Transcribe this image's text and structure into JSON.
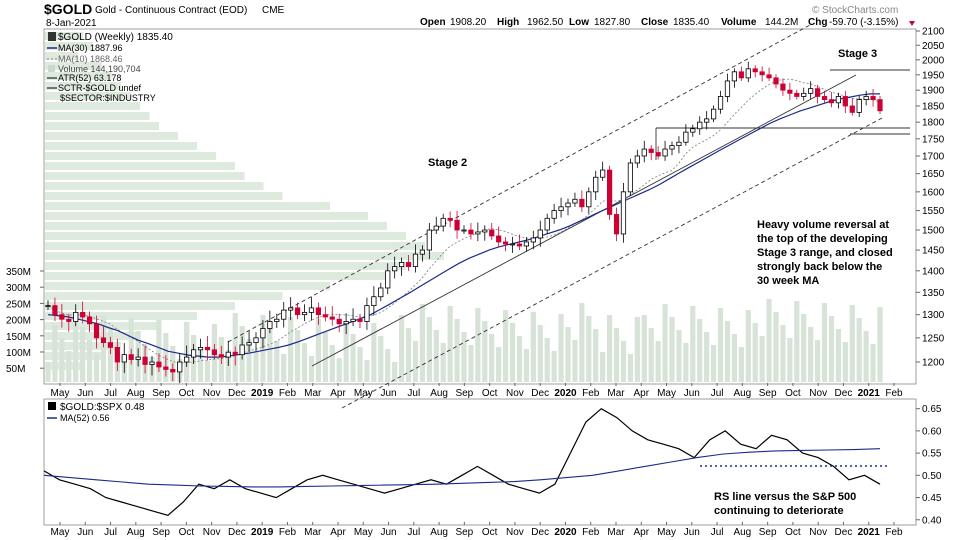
{
  "header": {
    "symbol": "$GOLD",
    "name": "Gold - Continuous Contract (EOD)",
    "exchange": "CME",
    "date": "8-Jan-2021",
    "open_label": "Open",
    "open": "1908.20",
    "high_label": "High",
    "high": "1962.50",
    "low_label": "Low",
    "low": "1827.80",
    "close_label": "Close",
    "close": "1835.40",
    "volume_label": "Volume",
    "volume": "144.2M",
    "chg_label": "Chg",
    "chg": "-59.70 (-3.15%)",
    "watermark": "© StockCharts.com"
  },
  "legend": {
    "price": "$GOLD (Weekly) 1835.40",
    "ma30": "MA(30) 1887.96",
    "ma10": "MA(10) 1868.46",
    "volume": "Volume 144,190,704",
    "atr": "ATR(52) 63.178",
    "sctr": "SCTR-$GOLD undef",
    "sector": "$SECTOR:$INDUSTRY"
  },
  "annotations": {
    "stage2": "Stage 2",
    "stage3": "Stage 3",
    "note_main": [
      "Heavy volume reversal at",
      "the top of the developing",
      "Stage 3 range, and closed",
      "strongly back below the",
      "30 week MA"
    ],
    "note_rs": [
      "RS line versus the S&P 500",
      "continuing to deteriorate"
    ]
  },
  "x_labels": [
    "May",
    "Jun",
    "Jul",
    "Aug",
    "Sep",
    "Oct",
    "Nov",
    "Dec",
    "2019",
    "Feb",
    "Mar",
    "Apr",
    "May",
    "Jun",
    "Jul",
    "Aug",
    "Sep",
    "Oct",
    "Nov",
    "Dec",
    "2020",
    "Feb",
    "Mar",
    "Apr",
    "May",
    "Jun",
    "Jul",
    "Aug",
    "Sep",
    "Oct",
    "Nov",
    "Dec",
    "2021",
    "Feb"
  ],
  "price_ticks": [
    "2100",
    "2050",
    "2000",
    "1950",
    "1900",
    "1850",
    "1800",
    "1750",
    "1700",
    "1650",
    "1600",
    "1550",
    "1500",
    "1450",
    "1400",
    "1350",
    "1300",
    "1250",
    "1200"
  ],
  "volume_ticks": [
    "350M",
    "300M",
    "250M",
    "200M",
    "150M",
    "100M",
    "50M"
  ],
  "rs_legend": {
    "ratio": "$GOLD:$SPX 0.48",
    "ma": "MA(52) 0.56"
  },
  "rs_ticks": [
    "0.65",
    "0.60",
    "0.55",
    "0.50",
    "0.45",
    "0.40"
  ],
  "colors": {
    "up": "#000000",
    "down": "#cc0033",
    "ma30": "#1a2a8c",
    "volume": "#d6e3d6",
    "vbp": "#dfeadf",
    "rs": "#000000",
    "rs_ma": "#1a2a8c"
  },
  "chart_data": {
    "type": "candlestick",
    "series_close": [
      1320,
      1300,
      1290,
      1285,
      1305,
      1295,
      1280,
      1250,
      1240,
      1230,
      1200,
      1215,
      1205,
      1210,
      1195,
      1200,
      1190,
      1185,
      1180,
      1200,
      1210,
      1225,
      1230,
      1225,
      1215,
      1210,
      1220,
      1215,
      1235,
      1240,
      1250,
      1270,
      1285,
      1290,
      1310,
      1315,
      1300,
      1305,
      1315,
      1300,
      1295,
      1290,
      1280,
      1285,
      1290,
      1285,
      1320,
      1340,
      1360,
      1400,
      1410,
      1420,
      1410,
      1440,
      1450,
      1500,
      1510,
      1530,
      1525,
      1500,
      1500,
      1490,
      1495,
      1500,
      1485,
      1470,
      1465,
      1465,
      1460,
      1470,
      1480,
      1500,
      1530,
      1550,
      1560,
      1570,
      1580,
      1560,
      1600,
      1640,
      1660,
      1540,
      1490,
      1600,
      1680,
      1700,
      1720,
      1710,
      1700,
      1720,
      1730,
      1740,
      1770,
      1780,
      1800,
      1810,
      1840,
      1880,
      1930,
      1960,
      1940,
      1970,
      1960,
      1950,
      1940,
      1920,
      1900,
      1890,
      1880,
      1890,
      1905,
      1880,
      1870,
      1860,
      1880,
      1850,
      1830,
      1870,
      1880,
      1870,
      1835
    ],
    "ma30": [
      1300,
      1298,
      1295,
      1290,
      1285,
      1280,
      1272,
      1265,
      1255,
      1245,
      1238,
      1230,
      1222,
      1218,
      1214,
      1212,
      1210,
      1210,
      1212,
      1215,
      1218,
      1222,
      1226,
      1230,
      1235,
      1242,
      1250,
      1258,
      1266,
      1274,
      1282,
      1290,
      1298,
      1310,
      1322,
      1335,
      1348,
      1362,
      1376,
      1390,
      1404,
      1418,
      1430,
      1440,
      1450,
      1458,
      1464,
      1470,
      1476,
      1484,
      1492,
      1500,
      1510,
      1522,
      1534,
      1546,
      1558,
      1570,
      1582,
      1594,
      1606,
      1620,
      1636,
      1652,
      1668,
      1684,
      1700,
      1716,
      1732,
      1748,
      1764,
      1780,
      1796,
      1810,
      1822,
      1834,
      1844,
      1854,
      1864,
      1872,
      1878,
      1884,
      1888,
      1888
    ],
    "rs_ratio": [
      0.51,
      0.49,
      0.48,
      0.47,
      0.45,
      0.44,
      0.43,
      0.42,
      0.41,
      0.44,
      0.48,
      0.47,
      0.49,
      0.47,
      0.46,
      0.45,
      0.47,
      0.49,
      0.5,
      0.49,
      0.48,
      0.47,
      0.46,
      0.47,
      0.48,
      0.49,
      0.48,
      0.5,
      0.52,
      0.5,
      0.48,
      0.47,
      0.46,
      0.48,
      0.55,
      0.62,
      0.65,
      0.63,
      0.6,
      0.58,
      0.57,
      0.56,
      0.54,
      0.58,
      0.6,
      0.57,
      0.56,
      0.59,
      0.58,
      0.55,
      0.54,
      0.52,
      0.49,
      0.5,
      0.48
    ],
    "rs_ma52": [
      0.5,
      0.495,
      0.49,
      0.485,
      0.48,
      0.478,
      0.476,
      0.475,
      0.474,
      0.474,
      0.475,
      0.476,
      0.477,
      0.478,
      0.479,
      0.48,
      0.482,
      0.484,
      0.486,
      0.49,
      0.495,
      0.5,
      0.51,
      0.52,
      0.53,
      0.54,
      0.548,
      0.552,
      0.555,
      0.556,
      0.557,
      0.558,
      0.56
    ],
    "ylim_price": [
      1175,
      2110
    ],
    "ylim_rs": [
      0.395,
      0.665
    ],
    "price_scale": "log-like, labels 1200-2100 step 50"
  }
}
